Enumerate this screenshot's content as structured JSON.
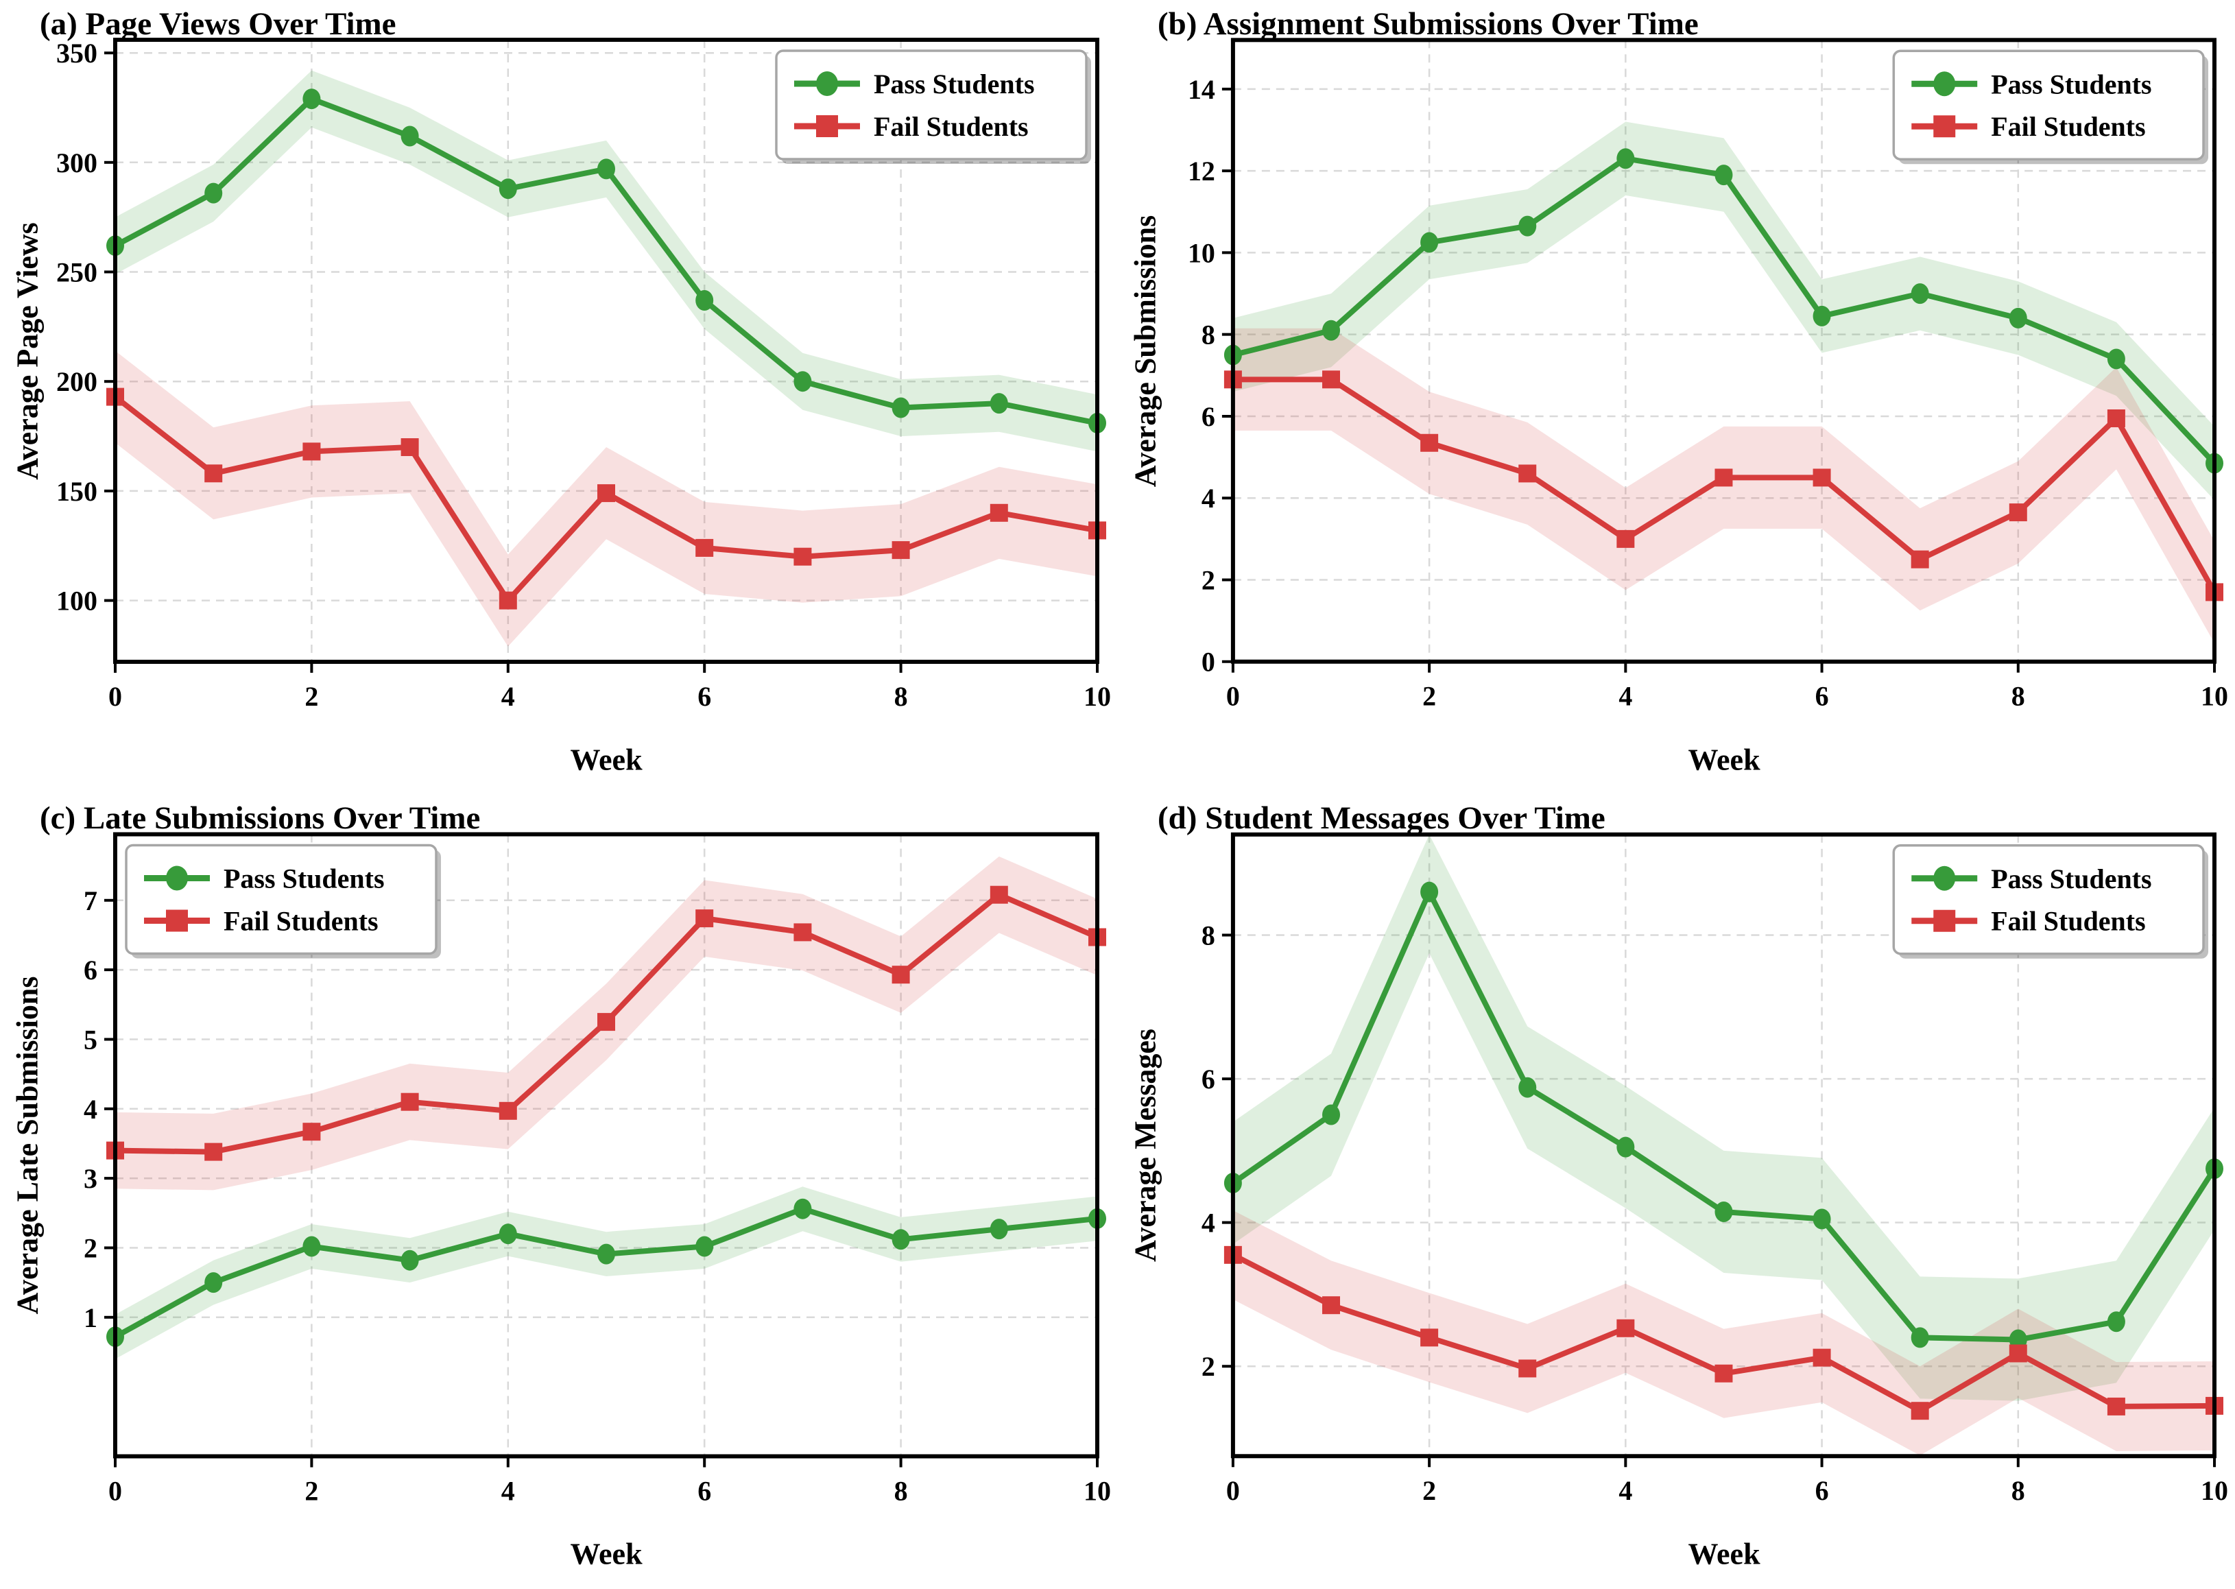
{
  "figure": {
    "background": "#ffffff",
    "legend_labels": {
      "pass": "Pass Students",
      "fail": "Fail Students"
    },
    "colors": {
      "pass_line": "#379b3a",
      "fail_line": "#d63c3c",
      "grid": "#d9d9d9",
      "spine": "#000000",
      "legend_border": "#a6a6a6"
    }
  },
  "chart_data": [
    {
      "type": "line",
      "title": "(a) Page Views Over Time",
      "xlabel": "Week",
      "ylabel": "Average Page Views",
      "x": [
        0,
        1,
        2,
        3,
        4,
        5,
        6,
        7,
        8,
        9,
        10
      ],
      "xlim": [
        0,
        10
      ],
      "ylim": [
        72,
        356
      ],
      "xticks": [
        0,
        2,
        4,
        6,
        8,
        10
      ],
      "yticks": [
        100,
        150,
        200,
        250,
        300,
        350
      ],
      "grid": true,
      "legend_position": "top-right",
      "series": [
        {
          "name": "Pass Students",
          "color": "#379b3a",
          "marker": "circle",
          "band_halfwidth": 13,
          "values": [
            262,
            286,
            329,
            312,
            288,
            297,
            237,
            200,
            188,
            190,
            181
          ]
        },
        {
          "name": "Fail Students",
          "color": "#d63c3c",
          "marker": "square",
          "band_halfwidth": 21,
          "values": [
            193,
            158,
            168,
            170,
            100,
            149,
            124,
            120,
            123,
            140,
            132
          ]
        }
      ]
    },
    {
      "type": "line",
      "title": "(b) Assignment Submissions Over Time",
      "xlabel": "Week",
      "ylabel": "Average Submissions",
      "x": [
        0,
        1,
        2,
        3,
        4,
        5,
        6,
        7,
        8,
        9,
        10
      ],
      "xlim": [
        0,
        10
      ],
      "ylim": [
        0,
        15.2
      ],
      "xticks": [
        0,
        2,
        4,
        6,
        8,
        10
      ],
      "yticks": [
        0,
        2,
        4,
        6,
        8,
        10,
        12,
        14
      ],
      "grid": true,
      "legend_position": "top-right",
      "series": [
        {
          "name": "Pass Students",
          "color": "#379b3a",
          "marker": "circle",
          "band_halfwidth": 0.9,
          "values": [
            7.5,
            8.1,
            10.25,
            10.65,
            12.3,
            11.9,
            8.45,
            9.0,
            8.4,
            7.4,
            4.85
          ]
        },
        {
          "name": "Fail Students",
          "color": "#d63c3c",
          "marker": "square",
          "band_halfwidth": 1.25,
          "values": [
            6.9,
            6.9,
            5.35,
            4.6,
            3.0,
            4.5,
            4.5,
            2.5,
            3.65,
            5.95,
            1.7
          ]
        }
      ]
    },
    {
      "type": "line",
      "title": "(c) Late Submissions Over Time",
      "xlabel": "Week",
      "ylabel": "Average Late Submissions",
      "x": [
        0,
        1,
        2,
        3,
        4,
        5,
        6,
        7,
        8,
        9,
        10
      ],
      "xlim": [
        0,
        10
      ],
      "ylim": [
        -1.0,
        7.95
      ],
      "xticks": [
        0,
        2,
        4,
        6,
        8,
        10
      ],
      "yticks": [
        1,
        2,
        3,
        4,
        5,
        6,
        7
      ],
      "grid": true,
      "legend_position": "top-left",
      "series": [
        {
          "name": "Pass Students",
          "color": "#379b3a",
          "marker": "circle",
          "band_halfwidth": 0.32,
          "values": [
            0.72,
            1.5,
            2.02,
            1.82,
            2.2,
            1.91,
            2.02,
            2.56,
            2.12,
            2.27,
            2.42
          ]
        },
        {
          "name": "Fail Students",
          "color": "#d63c3c",
          "marker": "square",
          "band_halfwidth": 0.55,
          "values": [
            3.4,
            3.38,
            3.67,
            4.1,
            3.97,
            5.25,
            6.74,
            6.54,
            5.93,
            7.08,
            6.47
          ]
        }
      ]
    },
    {
      "type": "line",
      "title": "(d) Student Messages Over Time",
      "xlabel": "Week",
      "ylabel": "Average Messages",
      "x": [
        0,
        1,
        2,
        3,
        4,
        5,
        6,
        7,
        8,
        9,
        10
      ],
      "xlim": [
        0,
        10
      ],
      "ylim": [
        0.75,
        9.4
      ],
      "xticks": [
        0,
        2,
        4,
        6,
        8,
        10
      ],
      "yticks": [
        2,
        4,
        6,
        8
      ],
      "grid": true,
      "legend_position": "top-right",
      "series": [
        {
          "name": "Pass Students",
          "color": "#379b3a",
          "marker": "circle",
          "band_halfwidth": 0.85,
          "values": [
            4.55,
            5.5,
            8.6,
            5.88,
            5.05,
            4.15,
            4.05,
            2.4,
            2.37,
            2.62,
            4.75
          ]
        },
        {
          "name": "Fail Students",
          "color": "#d63c3c",
          "marker": "square",
          "band_halfwidth": 0.62,
          "values": [
            3.55,
            2.85,
            2.4,
            1.97,
            2.53,
            1.9,
            2.12,
            1.38,
            2.18,
            1.44,
            1.45
          ]
        }
      ]
    }
  ]
}
